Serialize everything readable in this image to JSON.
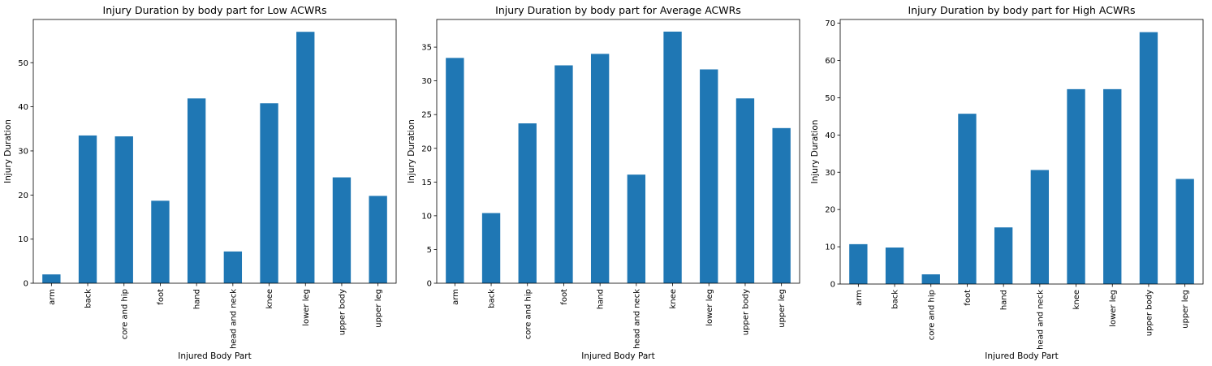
{
  "chart_data": [
    {
      "type": "bar",
      "title": "Injury Duration by body part for Low ACWRs",
      "xlabel": "Injured Body Part",
      "ylabel": "Injury Duration",
      "categories": [
        "arm",
        "back",
        "core and hip",
        "foot",
        "hand",
        "head and neck",
        "knee",
        "lower leg",
        "upper body",
        "upper leg"
      ],
      "values": [
        2.0,
        33.5,
        33.3,
        18.7,
        41.9,
        7.2,
        40.8,
        57.0,
        24.0,
        19.8
      ],
      "ylim": [
        0,
        59.8
      ],
      "yticks": [
        0,
        10,
        20,
        30,
        40,
        50
      ],
      "color": "#1f77b4",
      "grid": false
    },
    {
      "type": "bar",
      "title": "Injury Duration by body part for Average ACWRs",
      "xlabel": "Injured Body Part",
      "ylabel": "Injury Duration",
      "categories": [
        "arm",
        "back",
        "core and hip",
        "foot",
        "hand",
        "head and neck",
        "knee",
        "lower leg",
        "upper body",
        "upper leg"
      ],
      "values": [
        33.4,
        10.4,
        23.7,
        32.3,
        34.0,
        16.1,
        37.3,
        31.7,
        27.4,
        23.0
      ],
      "ylim": [
        0,
        39.1
      ],
      "yticks": [
        0,
        5,
        10,
        15,
        20,
        25,
        30,
        35
      ],
      "color": "#1f77b4",
      "grid": false
    },
    {
      "type": "bar",
      "title": "Injury Duration by body part for High ACWRs",
      "xlabel": "Injured Body Part",
      "ylabel": "Injury Duration",
      "categories": [
        "arm",
        "back",
        "core and hip",
        "foot",
        "hand",
        "head and neck",
        "knee",
        "lower leg",
        "upper body",
        "upper leg"
      ],
      "values": [
        10.7,
        9.8,
        2.6,
        45.7,
        15.2,
        30.6,
        52.3,
        52.3,
        67.6,
        28.2
      ],
      "ylim": [
        0,
        71.0
      ],
      "yticks": [
        0,
        10,
        20,
        30,
        40,
        50,
        60,
        70
      ],
      "color": "#1f77b4",
      "grid": false
    }
  ]
}
